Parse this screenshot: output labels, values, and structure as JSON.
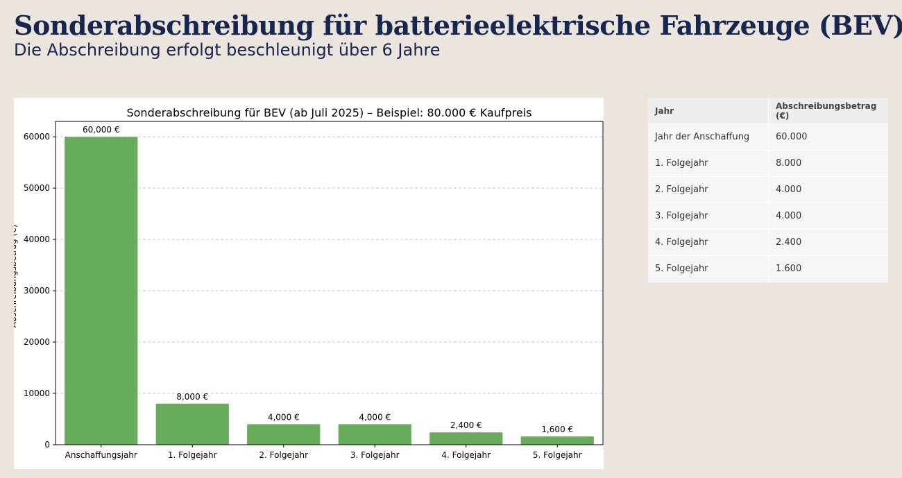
{
  "header": {
    "title": "Sonderabschreibung für batterieelektrische Fahrzeuge (BEV)",
    "subtitle": "Die Abschreibung erfolgt beschleunigt über 6 Jahre"
  },
  "colors": {
    "bar": "#67ac5b",
    "title": "#16264f",
    "background": "#ebe5dd"
  },
  "chart_data": {
    "type": "bar",
    "title": "Sonderabschreibung für BEV (ab Juli 2025) – Beispiel: 80.000 € Kaufpreis",
    "xlabel": "",
    "ylabel": "Abschreibungsbetrag (€)",
    "categories": [
      "Anschaffungsjahr",
      "1. Folgejahr",
      "2. Folgejahr",
      "3. Folgejahr",
      "4. Folgejahr",
      "5. Folgejahr"
    ],
    "values": [
      60000,
      8000,
      4000,
      4000,
      2400,
      1600
    ],
    "data_labels": [
      "60,000 €",
      "8,000 €",
      "4,000 €",
      "4,000 €",
      "2,400 €",
      "1,600 €"
    ],
    "ylim": [
      0,
      63000
    ],
    "yticks": [
      0,
      10000,
      20000,
      30000,
      40000,
      50000,
      60000
    ],
    "grid": "y-dashed"
  },
  "table": {
    "headers": [
      "Jahr",
      "Abschreibungsbetrag (€)"
    ],
    "rows": [
      [
        "Jahr der Anschaffung",
        "60.000"
      ],
      [
        "1. Folgejahr",
        "8.000"
      ],
      [
        "2. Folgejahr",
        "4.000"
      ],
      [
        "3. Folgejahr",
        "4.000"
      ],
      [
        "4. Folgejahr",
        "2.400"
      ],
      [
        "5. Folgejahr",
        "1.600"
      ]
    ]
  }
}
